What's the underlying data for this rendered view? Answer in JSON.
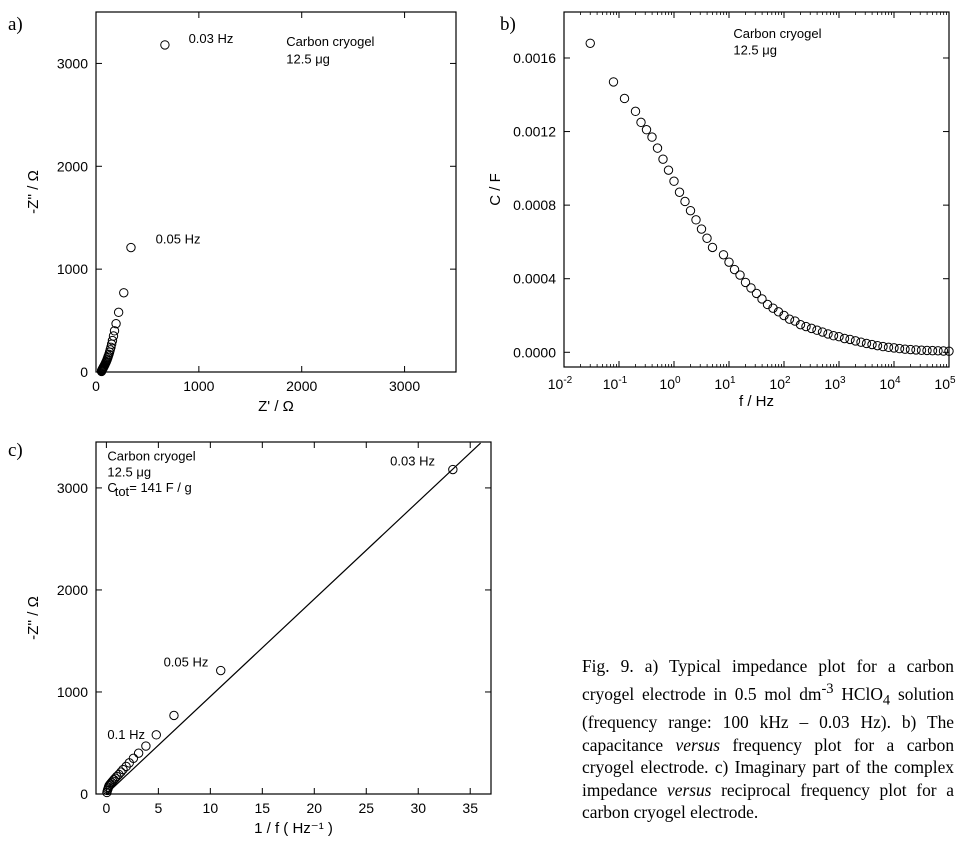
{
  "chart_data": [
    {
      "panel": "a)",
      "type": "scatter",
      "xlabel": "Z' / Ω",
      "ylabel": "-Z'' / Ω",
      "xlim": [
        0,
        3500
      ],
      "ylim": [
        0,
        3500
      ],
      "xticks": [
        0,
        1000,
        2000,
        3000
      ],
      "yticks": [
        0,
        1000,
        2000,
        3000
      ],
      "annotations": [
        {
          "text": "0.03 Hz",
          "x": 900,
          "y": 3200
        },
        {
          "text": "0.05 Hz",
          "x": 580,
          "y": 1250
        },
        {
          "text": "Carbon cryogel",
          "x": 1850,
          "y": 3170
        },
        {
          "text": "12.5 μg",
          "x": 1850,
          "y": 3000
        }
      ],
      "series": [
        {
          "marker": "open-circle",
          "x": [
            670,
            340,
            270,
            220,
            195,
            180,
            170,
            160,
            152,
            145,
            138,
            132,
            126,
            120,
            115,
            110,
            105,
            100,
            95,
            90,
            86,
            82,
            78,
            75,
            72,
            69,
            66,
            64,
            62,
            60,
            58,
            56,
            55,
            54
          ],
          "y": [
            3180,
            1210,
            770,
            580,
            470,
            400,
            350,
            305,
            270,
            240,
            215,
            192,
            172,
            155,
            140,
            126,
            113,
            101,
            90,
            80,
            71,
            63,
            56,
            50,
            44,
            39,
            34,
            30,
            26,
            22,
            18,
            14,
            10,
            6
          ]
        }
      ]
    },
    {
      "panel": "b)",
      "type": "scatter",
      "xscale": "log",
      "xlabel": "f / Hz",
      "ylabel": "C / F",
      "xlim": [
        0.01,
        100000
      ],
      "ylim": [
        -8e-05,
        0.00185
      ],
      "xticks": [
        0.01,
        0.1,
        1,
        10,
        100,
        1000,
        10000,
        100000
      ],
      "xtick_base": "10",
      "xtick_exps": [
        "-2",
        "-1",
        "0",
        "1",
        "2",
        "3",
        "4",
        "5"
      ],
      "yticks": [
        0,
        0.0004,
        0.0008,
        0.0012,
        0.0016
      ],
      "ytick_labels": [
        "0.0000",
        "0.0004",
        "0.0008",
        "0.0012",
        "0.0016"
      ],
      "annotations": [
        {
          "text": "Carbon cryogel",
          "x": 12,
          "y": 0.00171
        },
        {
          "text": "12.5 μg",
          "x": 12,
          "y": 0.00162
        }
      ],
      "series": [
        {
          "marker": "open-circle",
          "x": [
            0.03,
            0.0794,
            0.1259,
            0.1995,
            0.2512,
            0.3162,
            0.3981,
            0.5012,
            0.631,
            0.7943,
            1,
            1.259,
            1.585,
            1.995,
            2.512,
            3.162,
            3.981,
            5.012,
            7.943,
            10,
            12.59,
            15.85,
            19.95,
            25.12,
            31.62,
            39.81,
            50.12,
            63.1,
            79.43,
            100,
            125.9,
            158.5,
            199.5,
            251.2,
            316.2,
            398.1,
            501.2,
            631,
            794.3,
            1000,
            1259,
            1585,
            1995,
            2512,
            3162,
            3981,
            5012,
            6310,
            7943,
            10000,
            12589,
            15849,
            19953,
            25119,
            31623,
            39811,
            50119,
            63096,
            79433,
            100000
          ],
          "y": [
            0.00168,
            0.00147,
            0.00138,
            0.00131,
            0.00125,
            0.00121,
            0.00117,
            0.00111,
            0.00105,
            0.00099,
            0.00093,
            0.00087,
            0.00082,
            0.00077,
            0.00072,
            0.00067,
            0.00062,
            0.00057,
            0.00053,
            0.00049,
            0.00045,
            0.00042,
            0.00038,
            0.00035,
            0.00032,
            0.00029,
            0.00026,
            0.00024,
            0.00022,
            0.0002,
            0.00018,
            0.00017,
            0.00015,
            0.00014,
            0.00013,
            0.00012,
            0.00011,
            0.0001,
            9e-05,
            8.5e-05,
            7.5e-05,
            7e-05,
            6.2e-05,
            5.5e-05,
            4.8e-05,
            4.2e-05,
            3.6e-05,
            3.1e-05,
            2.7e-05,
            2.4e-05,
            2e-05,
            1.7e-05,
            1.5e-05,
            1.3e-05,
            1.1e-05,
            1e-05,
            9e-06,
            8e-06,
            7e-06,
            6e-06
          ]
        }
      ]
    },
    {
      "panel": "c)",
      "type": "scatter",
      "xlabel": "1 / f ( Hz⁻¹ )",
      "ylabel": "-Z'' / Ω",
      "xlim": [
        -1,
        37
      ],
      "ylim": [
        0,
        3450
      ],
      "xticks": [
        0,
        5,
        10,
        15,
        20,
        25,
        30,
        35
      ],
      "yticks": [
        0,
        1000,
        2000,
        3000
      ],
      "annotations": [
        {
          "text": "0.03 Hz",
          "x": 27.3,
          "y": 3220
        },
        {
          "text": "0.05 Hz",
          "x": 5.5,
          "y": 1250
        },
        {
          "text": "0.1 Hz",
          "x": 0.1,
          "y": 540
        },
        {
          "text": "Carbon cryogel",
          "x": 0.1,
          "y": 3270
        },
        {
          "text": "12.5 μg",
          "x": 0.1,
          "y": 3110
        },
        {
          "text": "C",
          "x": 0.1,
          "y": 2960
        },
        {
          "text": "tot",
          "x": 0.8,
          "y": 2920
        },
        {
          "text": "= 141 F / g",
          "x": 2.2,
          "y": 2960
        }
      ],
      "fit_line": {
        "x": [
          0,
          36
        ],
        "y": [
          0,
          3440
        ]
      },
      "series": [
        {
          "marker": "open-circle",
          "x": [
            33.33,
            11.0,
            6.5,
            4.8,
            3.8,
            3.1,
            2.6,
            2.2,
            1.9,
            1.6,
            1.4,
            1.2,
            1.0,
            0.85,
            0.72,
            0.6,
            0.5,
            0.4,
            0.32,
            0.25,
            0.2,
            0.15,
            0.1,
            0.05
          ],
          "y": [
            3180,
            1210,
            770,
            580,
            470,
            400,
            350,
            305,
            270,
            240,
            215,
            192,
            172,
            155,
            140,
            126,
            113,
            101,
            90,
            80,
            65,
            50,
            35,
            15
          ]
        }
      ]
    }
  ],
  "caption": {
    "part1": "Fig. 9. a) Typical impedance plot for a carbon cryogel electrode in 0.5 mol dm",
    "sup1": "-3",
    "part2": " HClO",
    "sub1": "4",
    "part3": " solution (frequency range: 100 kHz – 0.03 Hz). b) The capacitance ",
    "em1": "versus",
    "part4": " frequency plot for a carbon cryogel electrode. c) Imaginary part of the complex impedance ",
    "em2": "versus",
    "part5": " reciprocal frequency plot for a carbon cryogel electrode."
  }
}
